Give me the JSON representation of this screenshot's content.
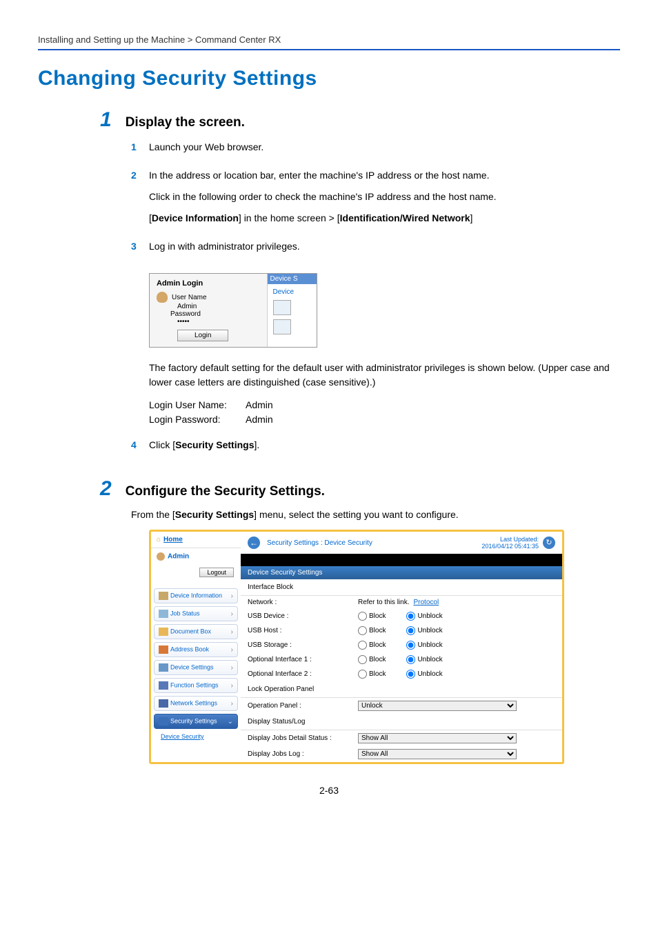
{
  "breadcrumb": "Installing and Setting up the Machine > Command Center RX",
  "main_heading": "Changing Security Settings",
  "page_number": "2-63",
  "steps": [
    {
      "num": "1",
      "title": "Display the screen.",
      "subs": [
        {
          "num": "1",
          "lines": [
            "Launch your Web browser."
          ]
        },
        {
          "num": "2",
          "lines": [
            "In the address or location bar, enter the machine's IP address or the host name.",
            "Click in the following order to check the machine's IP address and the host name.",
            "[<b>Device Information</b>] in the home screen > [<b>Identification/Wired Network</b>]"
          ]
        },
        {
          "num": "3",
          "lines": [
            "Log in with administrator privileges."
          ]
        },
        {
          "num": "4",
          "lines": [
            "Click [<b>Security Settings</b>]."
          ]
        }
      ]
    },
    {
      "num": "2",
      "title": "Configure the Security Settings.",
      "intro": "From the [<b>Security Settings</b>] menu, select the setting you want to configure."
    }
  ],
  "login_shot": {
    "header": "Admin Login",
    "username_label": "User Name",
    "username_value": "Admin",
    "password_label": "Password",
    "password_value": "•••••",
    "login_btn": "Login",
    "right_header": "Device S",
    "right_link": "Device"
  },
  "after_login_text": "The factory default setting for the default user with administrator privileges is shown below. (Upper case and lower case letters are distinguished (case sensitive).)",
  "creds": {
    "user_label": "Login User Name:",
    "user_value": "Admin",
    "pass_label": "Login Password:",
    "pass_value": "Admin"
  },
  "ss2": {
    "home": "Home",
    "admin": "Admin",
    "logout": "Logout",
    "nav": [
      {
        "label": "Device Information",
        "color": "#c8a868"
      },
      {
        "label": "Job Status",
        "color": "#8fb8d8"
      },
      {
        "label": "Document Box",
        "color": "#e8b858"
      },
      {
        "label": "Address Book",
        "color": "#d87838"
      },
      {
        "label": "Device Settings",
        "color": "#6898c8"
      },
      {
        "label": "Function Settings",
        "color": "#5878b8"
      },
      {
        "label": "Network Settings",
        "color": "#4868a8"
      }
    ],
    "nav_selected": "Security Settings",
    "nav_sub": "Device Security",
    "crumb": "Security Settings : Device Security",
    "updated_label": "Last Updated:",
    "updated_value": "2016/04/12 05:41:35",
    "section_header": "Device Security Settings",
    "block1_header": "Interface Block",
    "rows1": [
      {
        "k": "Network :",
        "type": "link",
        "pre": "Refer to this link.",
        "link": "Protocol"
      },
      {
        "k": "USB Device :",
        "type": "radio",
        "val": "Unblock"
      },
      {
        "k": "USB Host :",
        "type": "radio",
        "val": "Unblock"
      },
      {
        "k": "USB Storage :",
        "type": "radio",
        "val": "Unblock"
      },
      {
        "k": "Optional Interface 1 :",
        "type": "radio",
        "val": "Unblock"
      },
      {
        "k": "Optional Interface 2 :",
        "type": "radio",
        "val": "Unblock"
      }
    ],
    "radio_block": "Block",
    "radio_unblock": "Unblock",
    "block2_header": "Lock Operation Panel",
    "rows2": [
      {
        "k": "Operation Panel :",
        "type": "select",
        "val": "Unlock"
      }
    ],
    "block3_header": "Display Status/Log",
    "rows3": [
      {
        "k": "Display Jobs Detail Status :",
        "type": "select",
        "val": "Show All"
      },
      {
        "k": "Display Jobs Log :",
        "type": "select",
        "val": "Show All"
      }
    ]
  }
}
